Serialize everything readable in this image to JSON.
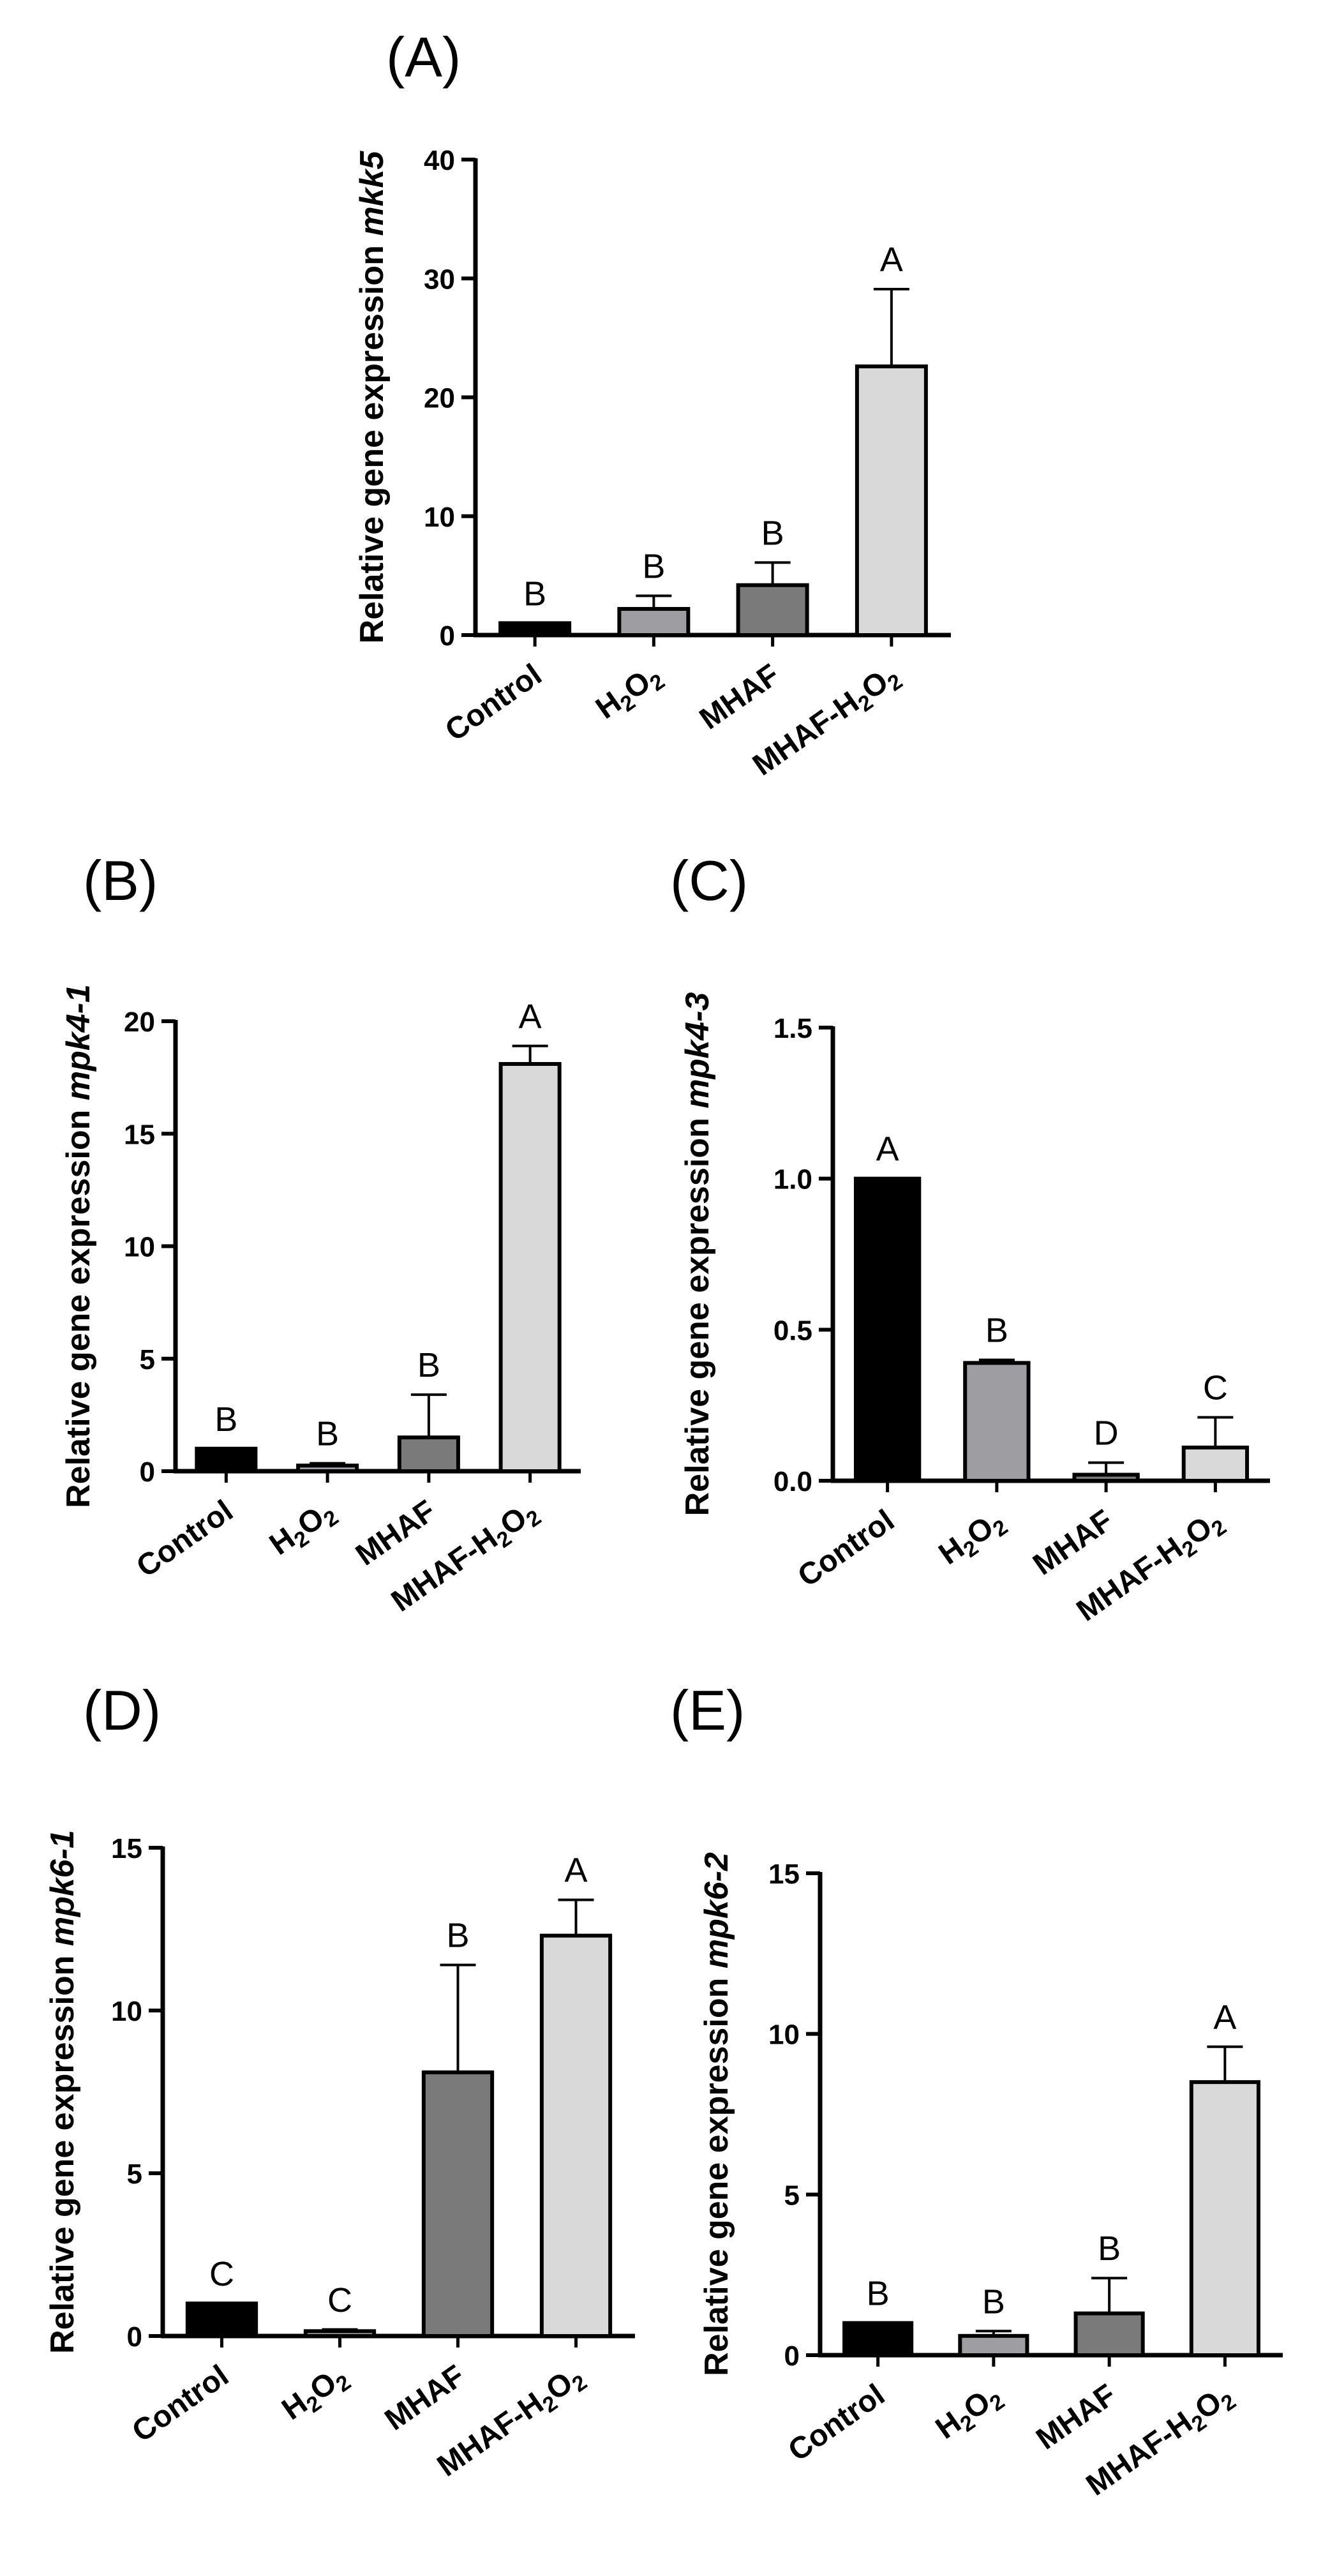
{
  "colors": {
    "Control": "#000000",
    "H2O2": "#9d9da2",
    "MHAF": "#7a7a7a",
    "MHAF-H2O2": "#d9d9d9",
    "axis": "#000000"
  },
  "chart_data": [
    {
      "panel": "(A)",
      "type": "bar",
      "ylabel": "Relative gene expression",
      "gene": "mkk5",
      "categories": [
        "Control",
        "H2O2",
        "MHAF",
        "MHAF-H2O2"
      ],
      "values": [
        1.0,
        2.2,
        4.2,
        22.6
      ],
      "errors": [
        0.0,
        1.1,
        1.9,
        6.5
      ],
      "letters": [
        "B",
        "B",
        "B",
        "A"
      ],
      "ylim": [
        0,
        40
      ],
      "yticks": [
        "0",
        "10",
        "20",
        "30",
        "40"
      ]
    },
    {
      "panel": "(B)",
      "type": "bar",
      "ylabel": "Relative gene expression",
      "gene": "mpk4-1",
      "categories": [
        "Control",
        "H2O2",
        "MHAF",
        "MHAF-H2O2"
      ],
      "values": [
        1.0,
        0.25,
        1.5,
        18.1
      ],
      "errors": [
        0.0,
        0.1,
        1.9,
        0.8
      ],
      "letters": [
        "B",
        "B",
        "B",
        "A"
      ],
      "ylim": [
        0,
        20
      ],
      "yticks": [
        "0",
        "5",
        "10",
        "15",
        "20"
      ]
    },
    {
      "panel": "(C)",
      "type": "bar",
      "ylabel": "Relative gene expression",
      "gene": "mpk4-3",
      "categories": [
        "Control",
        "H2O2",
        "MHAF",
        "MHAF-H2O2"
      ],
      "values": [
        1.0,
        0.39,
        0.02,
        0.11
      ],
      "errors": [
        0.0,
        0.01,
        0.04,
        0.1
      ],
      "letters": [
        "A",
        "B",
        "D",
        "C"
      ],
      "ylim": [
        0,
        1.5
      ],
      "yticks": [
        "0.0",
        "0.5",
        "1.0",
        "1.5"
      ]
    },
    {
      "panel": "(D)",
      "type": "bar",
      "ylabel": "Relative gene expression",
      "gene": "mpk6-1",
      "categories": [
        "Control",
        "H2O2",
        "MHAF",
        "MHAF-H2O2"
      ],
      "values": [
        1.0,
        0.15,
        8.1,
        12.3
      ],
      "errors": [
        0.0,
        0.05,
        3.3,
        1.1
      ],
      "letters": [
        "C",
        "C",
        "B",
        "A"
      ],
      "ylim": [
        0,
        15
      ],
      "yticks": [
        "0",
        "5",
        "10",
        "15"
      ]
    },
    {
      "panel": "(E)",
      "type": "bar",
      "ylabel": "Relative gene expression",
      "gene": "mpk6-2",
      "categories": [
        "Control",
        "H2O2",
        "MHAF",
        "MHAF-H2O2"
      ],
      "values": [
        1.0,
        0.6,
        1.3,
        8.5
      ],
      "errors": [
        0.0,
        0.15,
        1.1,
        1.1
      ],
      "letters": [
        "B",
        "B",
        "B",
        "A"
      ],
      "ylim": [
        0,
        15
      ],
      "yticks": [
        "0",
        "5",
        "10",
        "15"
      ]
    }
  ]
}
